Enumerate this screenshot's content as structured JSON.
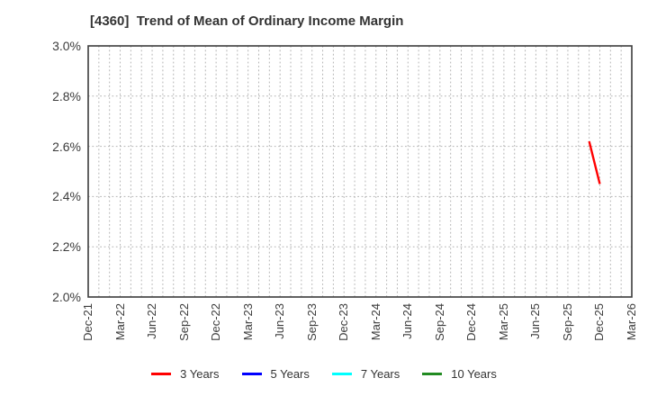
{
  "chart_data": {
    "type": "line",
    "title": "[4360]  Trend of Mean of Ordinary Income Margin",
    "xlabel": "",
    "ylabel": "",
    "ylim": [
      2.0,
      3.0
    ],
    "y_ticks": [
      {
        "label": "3.0%",
        "value": 3.0
      },
      {
        "label": "2.8%",
        "value": 2.8
      },
      {
        "label": "2.6%",
        "value": 2.6
      },
      {
        "label": "2.4%",
        "value": 2.4
      },
      {
        "label": "2.2%",
        "value": 2.2
      },
      {
        "label": "2.0%",
        "value": 2.0
      }
    ],
    "x_axis": {
      "total_months": 51,
      "ticks": [
        {
          "label": "Dec-21",
          "month": 0
        },
        {
          "label": "Mar-22",
          "month": 3
        },
        {
          "label": "Jun-22",
          "month": 6
        },
        {
          "label": "Sep-22",
          "month": 9
        },
        {
          "label": "Dec-22",
          "month": 12
        },
        {
          "label": "Mar-23",
          "month": 15
        },
        {
          "label": "Jun-23",
          "month": 18
        },
        {
          "label": "Sep-23",
          "month": 21
        },
        {
          "label": "Dec-23",
          "month": 24
        },
        {
          "label": "Mar-24",
          "month": 27
        },
        {
          "label": "Jun-24",
          "month": 30
        },
        {
          "label": "Sep-24",
          "month": 33
        },
        {
          "label": "Dec-24",
          "month": 36
        },
        {
          "label": "Mar-25",
          "month": 39
        },
        {
          "label": "Jun-25",
          "month": 42
        },
        {
          "label": "Sep-25",
          "month": 45
        },
        {
          "label": "Dec-25",
          "month": 48
        },
        {
          "label": "Mar-26",
          "month": 51
        }
      ]
    },
    "grid": {
      "vertical": "monthly-dotted",
      "horizontal": "dotted-at-y-ticks",
      "color": "#b4b4b4"
    },
    "axis_border_color": "#3c3c3c",
    "series": [
      {
        "name": "3 Years",
        "color": "#ff0000",
        "points": [
          {
            "x_label": "Nov-25",
            "month": 47,
            "value": 2.62
          },
          {
            "x_label": "Dec-25",
            "month": 48,
            "value": 2.45
          }
        ]
      },
      {
        "name": "5 Years",
        "color": "#0000ff",
        "points": []
      },
      {
        "name": "7 Years",
        "color": "#00ffff",
        "points": []
      },
      {
        "name": "10 Years",
        "color": "#228b22",
        "points": []
      }
    ],
    "legend": {
      "position": "bottom",
      "entries": [
        "3 Years",
        "5 Years",
        "7 Years",
        "10 Years"
      ]
    }
  }
}
